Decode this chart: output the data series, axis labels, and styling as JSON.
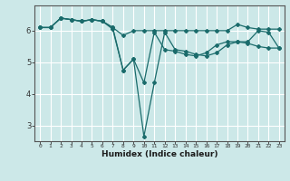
{
  "xlabel": "Humidex (Indice chaleur)",
  "bg_color": "#cce8e8",
  "grid_color": "#ffffff",
  "line_color": "#1a6b6b",
  "x_ticks": [
    0,
    1,
    2,
    3,
    4,
    5,
    6,
    7,
    8,
    9,
    10,
    11,
    12,
    13,
    14,
    15,
    16,
    17,
    18,
    19,
    20,
    21,
    22,
    23
  ],
  "y_ticks": [
    3,
    4,
    5,
    6
  ],
  "ylim": [
    2.5,
    6.8
  ],
  "xlim": [
    -0.5,
    23.5
  ],
  "series": [
    [
      6.1,
      6.1,
      6.4,
      6.35,
      6.3,
      6.35,
      6.3,
      6.1,
      5.85,
      6.0,
      6.0,
      6.0,
      6.0,
      6.0,
      6.0,
      6.0,
      6.0,
      6.0,
      6.0,
      6.2,
      6.1,
      6.05,
      6.05,
      6.05
    ],
    [
      6.1,
      6.1,
      6.4,
      6.35,
      6.3,
      6.35,
      6.3,
      6.1,
      4.75,
      5.1,
      4.35,
      5.95,
      5.4,
      5.35,
      5.25,
      5.2,
      5.3,
      5.55,
      5.65,
      5.65,
      5.6,
      5.5,
      5.45,
      5.45
    ],
    [
      6.1,
      6.1,
      6.4,
      6.35,
      6.3,
      6.35,
      6.3,
      6.05,
      4.75,
      5.1,
      2.65,
      4.35,
      5.95,
      5.4,
      5.35,
      5.25,
      5.2,
      5.3,
      5.55,
      5.65,
      5.65,
      6.0,
      5.95,
      5.45
    ]
  ]
}
